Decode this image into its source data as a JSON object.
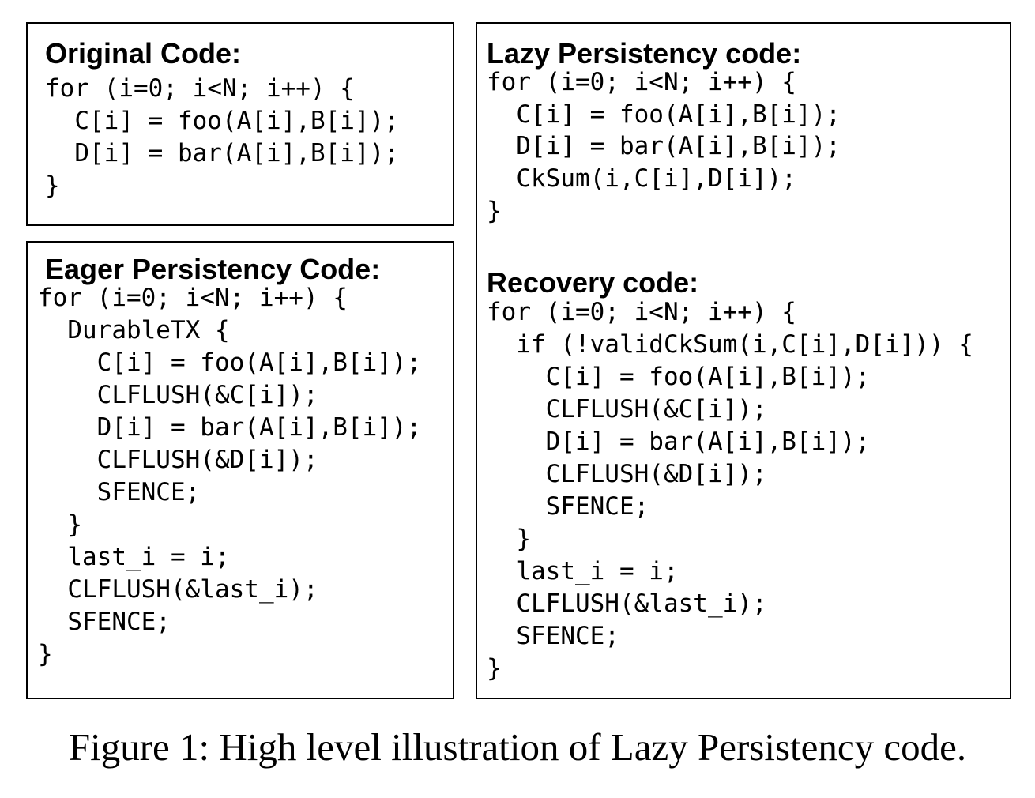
{
  "original": {
    "heading": "Original Code:",
    "lines": [
      "for (i=0; i<N; i++) {",
      "  C[i] = foo(A[i],B[i]);",
      "  D[i] = bar(A[i],B[i]);",
      "}"
    ]
  },
  "eager": {
    "heading": "Eager Persistency Code:",
    "lines": [
      "for (i=0; i<N; i++) {",
      "  DurableTX {",
      "    C[i] = foo(A[i],B[i]);",
      "    CLFLUSH(&C[i]);",
      "    D[i] = bar(A[i],B[i]);",
      "    CLFLUSH(&D[i]);",
      "    SFENCE;",
      "  }",
      "  last_i = i;",
      "  CLFLUSH(&last_i);",
      "  SFENCE;",
      "}"
    ]
  },
  "lazy": {
    "heading": "Lazy Persistency code:",
    "lines": [
      "for (i=0; i<N; i++) {",
      "  C[i] = foo(A[i],B[i]);",
      "  D[i] = bar(A[i],B[i]);",
      "  CkSum(i,C[i],D[i]);",
      "}"
    ]
  },
  "recovery": {
    "heading": "Recovery code:",
    "lines": [
      "for (i=0; i<N; i++) {",
      "  if (!validCkSum(i,C[i],D[i])) {",
      "    C[i] = foo(A[i],B[i]);",
      "    CLFLUSH(&C[i]);",
      "    D[i] = bar(A[i],B[i]);",
      "    CLFLUSH(&D[i]);",
      "    SFENCE;",
      "  }",
      "  last_i = i;",
      "  CLFLUSH(&last_i);",
      "  SFENCE;",
      "}"
    ]
  },
  "caption": "Figure 1: High level illustration of Lazy Persistency code."
}
